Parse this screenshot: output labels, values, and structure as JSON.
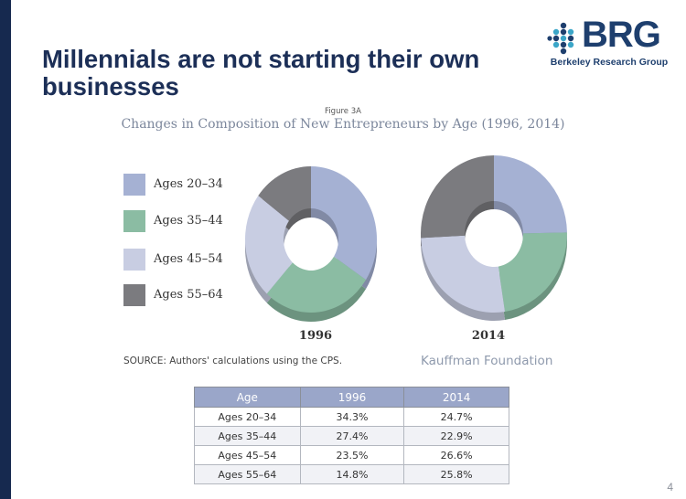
{
  "slide": {
    "title": "Millennials are not starting their own businesses",
    "page_number": "4"
  },
  "logo": {
    "wordmark": "BRG",
    "subtitle": "Berkeley Research Group"
  },
  "figure": {
    "label": "Figure 3A",
    "source": "SOURCE: Authors' calculations using the CPS.",
    "credit": "Kauffman Foundation"
  },
  "chart_data": {
    "type": "pie",
    "title": "Changes in Composition of New Entrepreneurs by Age (1996, 2014)",
    "categories": [
      "Ages 20–34",
      "Ages 35–44",
      "Ages 45–54",
      "Ages 55–64"
    ],
    "colors": [
      "#a5b1d3",
      "#8bbca3",
      "#c8cde2",
      "#7b7b7f"
    ],
    "series": [
      {
        "name": "1996",
        "values": [
          34.3,
          27.4,
          23.5,
          14.8
        ]
      },
      {
        "name": "2014",
        "values": [
          24.7,
          22.9,
          26.6,
          25.8
        ]
      }
    ]
  },
  "table": {
    "headers": [
      "Age",
      "1996",
      "2014"
    ],
    "rows": [
      [
        "Ages 20–34",
        "34.3%",
        "24.7%"
      ],
      [
        "Ages 35–44",
        "27.4%",
        "22.9%"
      ],
      [
        "Ages 45–54",
        "23.5%",
        "26.6%"
      ],
      [
        "Ages 55–64",
        "14.8%",
        "25.8%"
      ]
    ]
  }
}
